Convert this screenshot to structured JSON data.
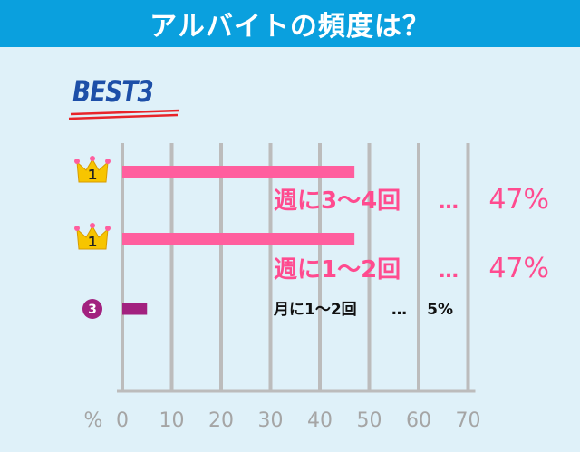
{
  "header": {
    "title": "アルバイトの頻度は？"
  },
  "badge": {
    "text": "BEST3"
  },
  "chart_data": {
    "type": "bar",
    "orientation": "horizontal",
    "categories": [
      "週に3～4回",
      "週に1～2回",
      "月に1～2回"
    ],
    "values": [
      47,
      47,
      5
    ],
    "ranks": [
      "1",
      "1",
      "3"
    ],
    "value_labels": [
      "47%",
      "47%",
      "5%"
    ],
    "separator": "…",
    "axis_unit": "%",
    "xlim": [
      0,
      70
    ],
    "xticks": [
      0,
      10,
      20,
      30,
      40,
      50,
      60,
      70
    ],
    "grid": true,
    "colors": {
      "header": "#0aa0de",
      "background": "#dff1f9",
      "bar_top": "#ff5e9e",
      "bar_third": "#a2217f",
      "label_top": "#ff4b8f",
      "grid": "#bcbcbc",
      "crown": "#f7c500",
      "rank3_circle": "#a2217f"
    }
  }
}
